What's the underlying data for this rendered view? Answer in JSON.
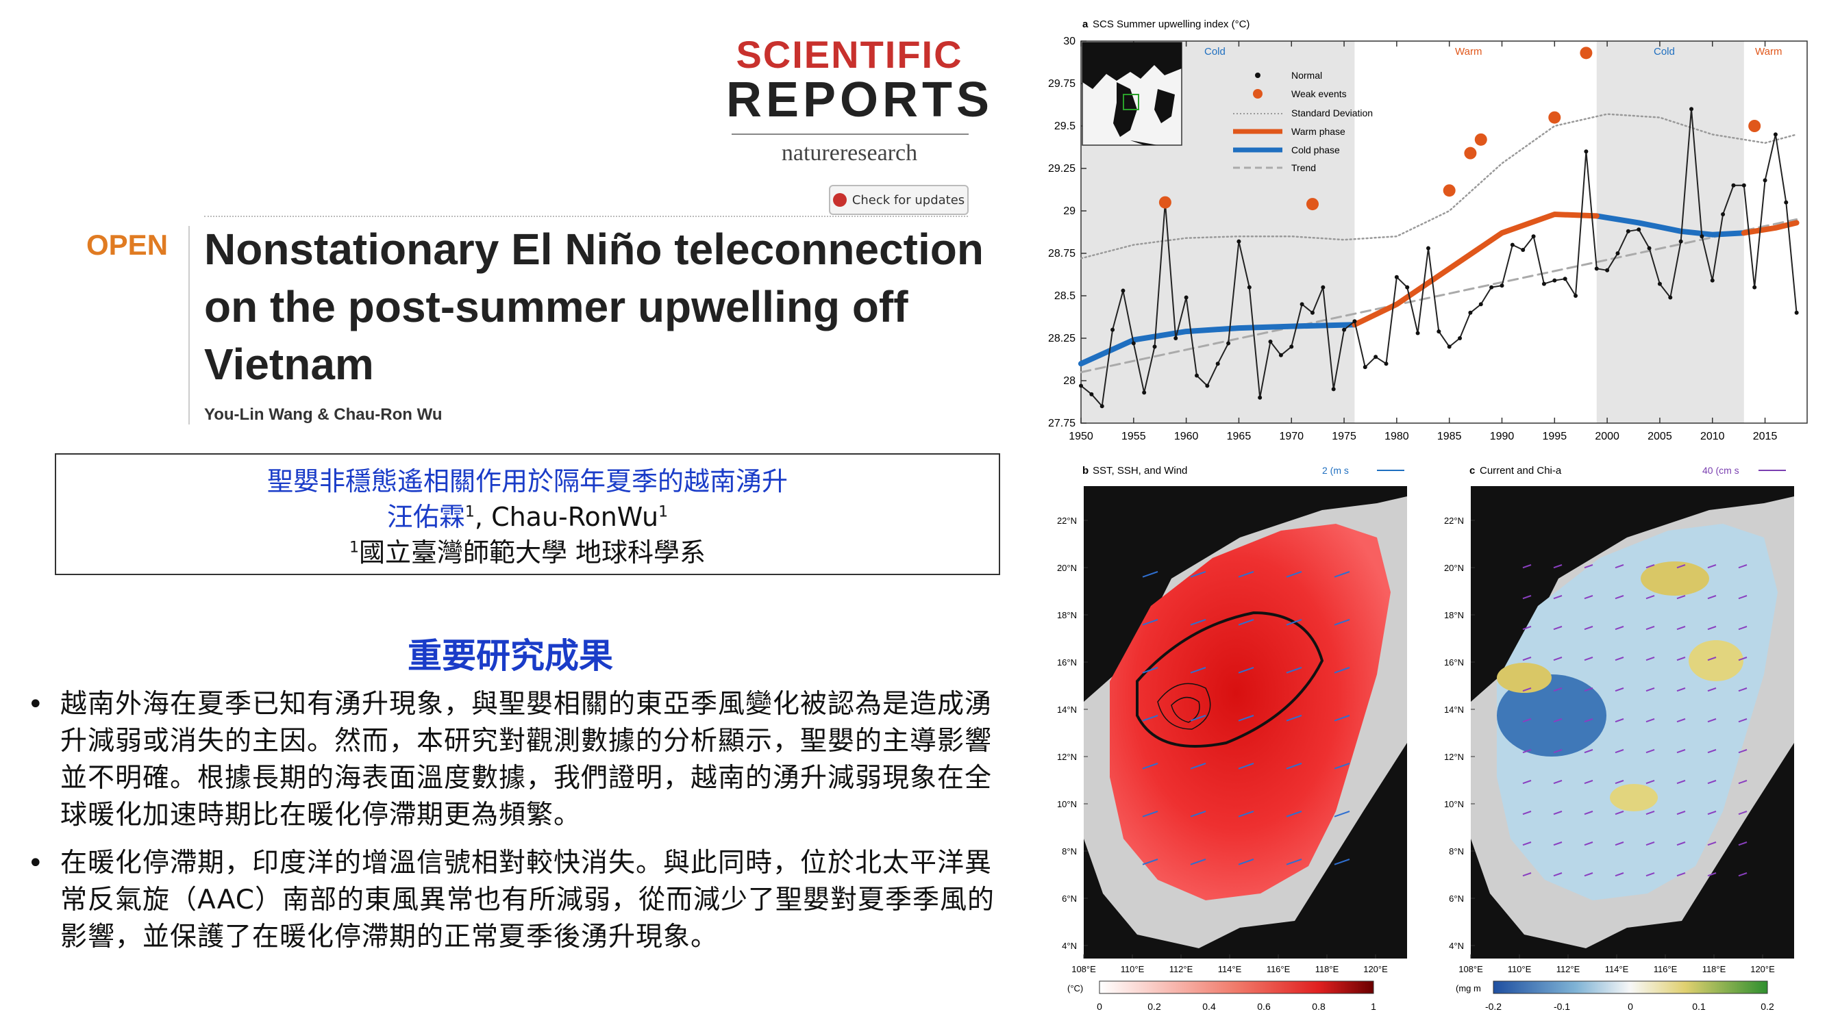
{
  "journal": {
    "name_line1": "SCIENTIFIC",
    "name_line2": "REPORTS",
    "publisher": "natureresearch",
    "check_updates": "Check for updates"
  },
  "article": {
    "access": "OPEN",
    "title": "Nonstationary El Niño teleconnection on the post-summer upwelling off Vietnam",
    "authors": "You-Lin Wang & Chau-Ron Wu"
  },
  "info_box": {
    "title_zh": "聖嬰非穩態遙相關作用於隔年夏季的越南湧升",
    "author_zh": "汪佑霖",
    "author_en": ", Chau-RonWu",
    "sup": "1",
    "affiliation_sup": "1",
    "affiliation": "國立臺灣師範大學 地球科學系"
  },
  "findings": {
    "heading": "重要研究成果",
    "bullets": [
      "越南外海在夏季已知有湧升現象，與聖嬰相關的東亞季風變化被認為是造成湧升減弱或消失的主因。然而，本研究對觀測數據的分析顯示，聖嬰的主導影響並不明確。根據長期的海表面溫度數據，我們證明，越南的湧升減弱現象在全球暖化加速時期比在暖化停滯期更為頻繁。",
      "在暖化停滯期，印度洋的增溫信號相對較快消失。與此同時，位於北太平洋異常反氣旋（AAC）南部的東風異常也有所減弱，從而減少了聖嬰對夏季季風的影響，並保護了在暖化停滯期的正常夏季後湧升現象。"
    ]
  },
  "figure": {
    "panel_a": {
      "label": "a",
      "title_text": "SCS Summer upwelling index (°C)",
      "phase_labels": [
        "Cold",
        "Warm",
        "Cold",
        "Warm"
      ],
      "legend": [
        "Normal",
        "Weak events",
        "Standard Deviation",
        "Warm phase",
        "Cold phase",
        "Trend"
      ],
      "colors": {
        "warm": "#e0571b",
        "cold": "#1f6fc0",
        "line": "#222222",
        "event": "#e0571b",
        "shade": "#e5e5e5"
      }
    },
    "panel_b": {
      "label": "b",
      "title_text": "SST, SSH, and Wind",
      "scale_label": "2 (m s",
      "colorbar_unit": "(°C)",
      "colorbar_ticks": [
        "0",
        "0.2",
        "0.4",
        "0.6",
        "0.8",
        "1"
      ]
    },
    "panel_c": {
      "label": "c",
      "title_text": "Current and Chi-a",
      "scale_label": "40 (cm s",
      "colorbar_unit": "(mg m",
      "colorbar_ticks": [
        "-0.2",
        "-0.1",
        "0",
        "0.1",
        "0.2"
      ]
    },
    "lat_ticks": [
      "22°N",
      "20°N",
      "18°N",
      "16°N",
      "14°N",
      "12°N",
      "10°N",
      "8°N",
      "6°N",
      "4°N"
    ],
    "lon_ticks": [
      "108°E",
      "110°E",
      "112°E",
      "114°E",
      "116°E",
      "118°E",
      "120°E"
    ]
  },
  "chart_data": {
    "type": "line",
    "title": "SCS Summer upwelling index (°C)",
    "xlabel": "",
    "ylabel": "",
    "xlim": [
      1950,
      2019
    ],
    "ylim": [
      27.75,
      30
    ],
    "x_ticks": [
      1950,
      1955,
      1960,
      1965,
      1970,
      1975,
      1980,
      1985,
      1990,
      1995,
      2000,
      2005,
      2010,
      2015
    ],
    "y_ticks": [
      27.75,
      28,
      28.25,
      28.5,
      28.75,
      29,
      29.25,
      29.5,
      29.75,
      30
    ],
    "shaded_periods": [
      [
        1950,
        1976
      ],
      [
        1999,
        2013
      ]
    ],
    "series": [
      {
        "name": "Normal",
        "x": [
          1950,
          1951,
          1952,
          1953,
          1954,
          1955,
          1956,
          1957,
          1958,
          1959,
          1960,
          1961,
          1962,
          1963,
          1964,
          1965,
          1966,
          1967,
          1968,
          1969,
          1970,
          1971,
          1972,
          1973,
          1974,
          1975,
          1976,
          1977,
          1978,
          1979,
          1980,
          1981,
          1982,
          1983,
          1984,
          1985,
          1986,
          1987,
          1988,
          1989,
          1990,
          1991,
          1992,
          1993,
          1994,
          1995,
          1996,
          1997,
          1998,
          1999,
          2000,
          2001,
          2002,
          2003,
          2004,
          2005,
          2006,
          2007,
          2008,
          2009,
          2010,
          2011,
          2012,
          2013,
          2014,
          2015,
          2016,
          2017,
          2018
        ],
        "values": [
          27.97,
          27.92,
          27.85,
          28.3,
          28.53,
          28.22,
          27.93,
          28.2,
          29.05,
          28.25,
          28.49,
          28.03,
          27.97,
          28.1,
          28.22,
          28.82,
          28.55,
          27.9,
          28.23,
          28.15,
          28.2,
          28.45,
          28.4,
          28.55,
          27.95,
          28.3,
          28.35,
          28.08,
          28.14,
          28.1,
          28.61,
          28.55,
          28.28,
          28.78,
          28.29,
          28.2,
          28.25,
          28.4,
          28.45,
          28.55,
          28.56,
          28.8,
          28.77,
          28.85,
          28.57,
          28.59,
          28.6,
          28.5,
          29.35,
          28.66,
          28.65,
          28.75,
          28.88,
          28.89,
          28.78,
          28.57,
          28.49,
          28.82,
          29.6,
          28.85,
          28.59,
          28.98,
          29.15,
          29.15,
          28.55,
          29.18,
          29.45,
          29.05,
          28.4
        ],
        "color": "#222222"
      },
      {
        "name": "Weak events",
        "x": [
          1958,
          1972,
          1985,
          1987,
          1988,
          1995,
          1998,
          2014
        ],
        "values": [
          29.05,
          29.04,
          29.12,
          29.34,
          29.42,
          29.55,
          29.93,
          29.5
        ],
        "color": "#e0571b"
      },
      {
        "name": "Standard Deviation",
        "x": [
          1950,
          1955,
          1960,
          1965,
          1970,
          1975,
          1980,
          1985,
          1990,
          1995,
          2000,
          2005,
          2010,
          2015,
          2018
        ],
        "values": [
          28.72,
          28.8,
          28.84,
          28.85,
          28.85,
          28.83,
          28.85,
          29.0,
          29.28,
          29.5,
          29.57,
          29.55,
          29.45,
          29.4,
          29.45
        ],
        "color": "#999999"
      },
      {
        "name": "Warm phase",
        "x": [
          1976,
          1980,
          1985,
          1990,
          1995,
          1999
        ],
        "values": [
          28.33,
          28.45,
          28.66,
          28.87,
          28.98,
          28.97
        ],
        "color": "#e0571b"
      },
      {
        "name": "Cold phase",
        "x": [
          1950,
          1955,
          1960,
          1965,
          1970,
          1976
        ],
        "values": [
          28.1,
          28.24,
          28.29,
          28.31,
          28.32,
          28.33
        ],
        "color": "#1f6fc0"
      },
      {
        "name": "Cold phase",
        "x": [
          1999,
          2003,
          2007,
          2010,
          2013
        ],
        "values": [
          28.97,
          28.93,
          28.88,
          28.86,
          28.87
        ],
        "color": "#1f6fc0"
      },
      {
        "name": "Warm phase",
        "x": [
          2013,
          2016,
          2018
        ],
        "values": [
          28.87,
          28.9,
          28.93
        ],
        "color": "#e0571b"
      },
      {
        "name": "Trend",
        "x": [
          1950,
          2018
        ],
        "values": [
          28.05,
          28.95
        ],
        "color": "#aaaaaa"
      }
    ]
  }
}
